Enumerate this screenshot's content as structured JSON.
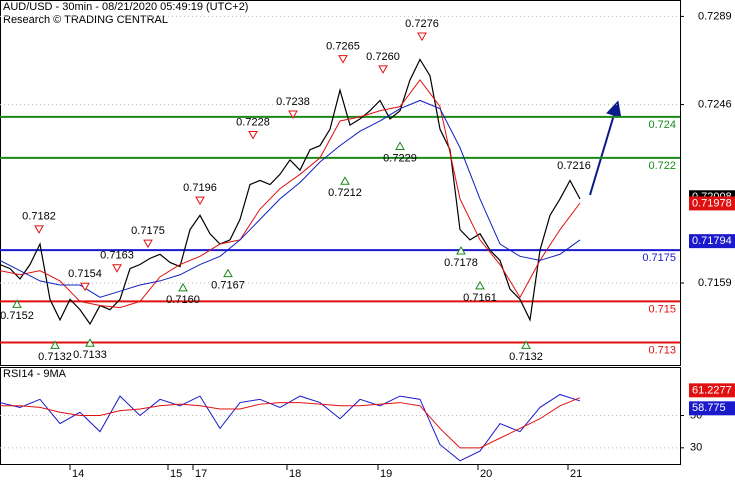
{
  "chart_data": {
    "type": "line",
    "title": "AUD/USD - 30min - 08/21/2020 05:49:19 (UTC+2)",
    "subtitle": "Research © TRADING CENTRAL",
    "xlim": [
      0,
      136
    ],
    "xticks": [
      {
        "value": 14,
        "label": "14"
      },
      {
        "value": 33.6,
        "label": "15"
      },
      {
        "value": 38.6,
        "label": "17"
      },
      {
        "value": 57.4,
        "label": "18"
      },
      {
        "value": 75.6,
        "label": "19"
      },
      {
        "value": 95.6,
        "label": "20"
      },
      {
        "value": 113.6,
        "label": "21"
      }
    ],
    "ylim": [
      0.7119,
      0.7297
    ],
    "yticks": [
      0.7289,
      0.7246,
      0.7159
    ],
    "grid": true,
    "series": [
      {
        "name": "price",
        "color": "#000000",
        "x": [
          0,
          2,
          4,
          6,
          8,
          10,
          12,
          14,
          16,
          18,
          20,
          22,
          24,
          26,
          28,
          30,
          32,
          34,
          36,
          38,
          40,
          42,
          44,
          46,
          48,
          50,
          52,
          54,
          56,
          58,
          60,
          62,
          64,
          66,
          68,
          70,
          72,
          74,
          76,
          78,
          80,
          82,
          84,
          86,
          88,
          90,
          92,
          94,
          96,
          98,
          100,
          102,
          104,
          106,
          108,
          110,
          112,
          114,
          116
        ],
        "values": [
          0.7168,
          0.7166,
          0.7161,
          0.7168,
          0.7178,
          0.7151,
          0.7141,
          0.7151,
          0.7146,
          0.7139,
          0.7148,
          0.7146,
          0.7151,
          0.7166,
          0.7168,
          0.7171,
          0.7173,
          0.7169,
          0.7167,
          0.7185,
          0.7192,
          0.7183,
          0.7178,
          0.718,
          0.719,
          0.7207,
          0.7209,
          0.7207,
          0.7212,
          0.7219,
          0.7214,
          0.7224,
          0.7226,
          0.7234,
          0.7253,
          0.7236,
          0.7239,
          0.7243,
          0.7248,
          0.7239,
          0.7243,
          0.7258,
          0.7268,
          0.726,
          0.7234,
          0.7224,
          0.7185,
          0.718,
          0.7183,
          0.7175,
          0.717,
          0.7156,
          0.7151,
          0.7141,
          0.7175,
          0.7192,
          0.72,
          0.7209,
          0.72
        ]
      },
      {
        "name": "fast-ma",
        "color": "#e01010",
        "x": [
          0,
          4,
          8,
          12,
          16,
          20,
          24,
          28,
          32,
          36,
          40,
          44,
          48,
          52,
          56,
          60,
          64,
          68,
          72,
          76,
          80,
          84,
          88,
          92,
          96,
          100,
          104,
          108,
          112,
          116
        ],
        "values": [
          0.7165,
          0.7163,
          0.7165,
          0.716,
          0.715,
          0.7148,
          0.7147,
          0.715,
          0.7162,
          0.7168,
          0.7172,
          0.7178,
          0.718,
          0.7195,
          0.7205,
          0.7212,
          0.722,
          0.7238,
          0.724,
          0.7243,
          0.7245,
          0.7258,
          0.7245,
          0.72,
          0.718,
          0.7168,
          0.7152,
          0.717,
          0.7185,
          0.7198
        ]
      },
      {
        "name": "slow-ma",
        "color": "#1020c0",
        "x": [
          0,
          4,
          8,
          12,
          16,
          20,
          24,
          28,
          32,
          36,
          40,
          44,
          48,
          52,
          56,
          60,
          64,
          68,
          72,
          76,
          80,
          84,
          88,
          92,
          96,
          100,
          104,
          108,
          112,
          116
        ],
        "values": [
          0.717,
          0.7165,
          0.716,
          0.7158,
          0.7158,
          0.7152,
          0.7155,
          0.7158,
          0.716,
          0.7163,
          0.7168,
          0.7172,
          0.718,
          0.719,
          0.72,
          0.7208,
          0.7218,
          0.7226,
          0.7233,
          0.7238,
          0.7244,
          0.7248,
          0.7244,
          0.7225,
          0.72,
          0.7178,
          0.7172,
          0.717,
          0.7173,
          0.718
        ]
      }
    ],
    "levels": [
      {
        "value": 0.724,
        "color": "#1a8a1a"
      },
      {
        "value": 0.722,
        "color": "#1a8a1a"
      },
      {
        "value": 0.7175,
        "color": "#1a1acc"
      },
      {
        "value": 0.715,
        "color": "#e01010"
      },
      {
        "value": 0.713,
        "color": "#e01010"
      }
    ],
    "price_tags": [
      {
        "value": 0.72008,
        "color": "#000000"
      },
      {
        "value": 0.71978,
        "color": "#e01010"
      },
      {
        "value": 0.71794,
        "color": "#1a1acc"
      }
    ],
    "annotations": [
      {
        "x": 3.4,
        "value": 0.7152,
        "kind": "low"
      },
      {
        "x": 7.8,
        "value": 0.7182,
        "kind": "high"
      },
      {
        "x": 11,
        "value": 0.7132,
        "kind": "low"
      },
      {
        "x": 17,
        "value": 0.7154,
        "kind": "high"
      },
      {
        "x": 18,
        "value": 0.7133,
        "kind": "low"
      },
      {
        "x": 23.4,
        "value": 0.7163,
        "kind": "high"
      },
      {
        "x": 29.6,
        "value": 0.7175,
        "kind": "high"
      },
      {
        "x": 36.6,
        "value": 0.716,
        "label": "0.7160",
        "kind": "low"
      },
      {
        "x": 40,
        "value": 0.7196,
        "kind": "high"
      },
      {
        "x": 45.6,
        "value": 0.7167,
        "kind": "low"
      },
      {
        "x": 50.6,
        "value": 0.7228,
        "kind": "high"
      },
      {
        "x": 58.6,
        "value": 0.7238,
        "kind": "high"
      },
      {
        "x": 68.6,
        "value": 0.7265,
        "kind": "high"
      },
      {
        "x": 69,
        "value": 0.7212,
        "kind": "low"
      },
      {
        "x": 76.6,
        "value": 0.726,
        "label": "0.7260",
        "kind": "high"
      },
      {
        "x": 80,
        "value": 0.7229,
        "kind": "low"
      },
      {
        "x": 84.4,
        "value": 0.7276,
        "kind": "high"
      },
      {
        "x": 92.2,
        "value": 0.7178,
        "kind": "low"
      },
      {
        "x": 96,
        "value": 0.7161,
        "kind": "low"
      },
      {
        "x": 105.2,
        "value": 0.7132,
        "kind": "low"
      },
      {
        "x": 116,
        "value": 0.7216,
        "kind": "note"
      }
    ],
    "rsi": {
      "label": "RSI14 - 9MA",
      "ylim": [
        20,
        80
      ],
      "yticks": [
        50,
        30
      ],
      "series": [
        {
          "name": "rsi",
          "color": "#1a1acc",
          "x": [
            0,
            4,
            8,
            12,
            16,
            20,
            24,
            28,
            32,
            36,
            40,
            44,
            48,
            52,
            56,
            60,
            64,
            68,
            72,
            76,
            80,
            84,
            88,
            92,
            96,
            100,
            104,
            108,
            112,
            116
          ],
          "values": [
            58,
            55,
            60,
            45,
            52,
            40,
            62,
            50,
            60,
            56,
            62,
            42,
            58,
            60,
            55,
            62,
            58,
            48,
            60,
            56,
            62,
            60,
            32,
            22,
            28,
            45,
            40,
            55,
            63,
            59
          ]
        },
        {
          "name": "rsi-ma",
          "color": "#e01010",
          "x": [
            0,
            4,
            8,
            12,
            16,
            20,
            24,
            28,
            32,
            36,
            40,
            44,
            48,
            52,
            56,
            60,
            64,
            68,
            72,
            76,
            80,
            84,
            88,
            92,
            96,
            100,
            104,
            108,
            112,
            116
          ],
          "values": [
            56,
            56,
            55,
            52,
            50,
            50,
            53,
            54,
            56,
            57,
            56,
            54,
            54,
            57,
            58,
            58,
            57,
            56,
            56,
            57,
            58,
            56,
            42,
            30,
            30,
            36,
            42,
            48,
            56,
            61
          ]
        }
      ],
      "tags": [
        {
          "value": 61.2277,
          "color": "#e01010"
        },
        {
          "value": 58.775,
          "color": "#1a1acc"
        }
      ]
    }
  }
}
